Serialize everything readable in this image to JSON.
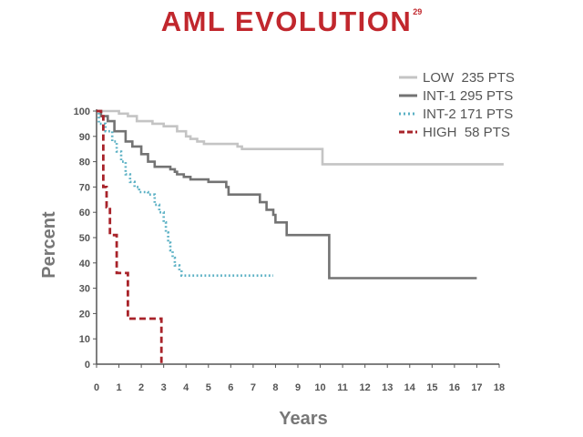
{
  "title": "AML EVOLUTION",
  "title_superscript": "29",
  "chart_data": {
    "type": "line",
    "subtype": "kaplan-meier step",
    "title": "AML EVOLUTION",
    "xlabel": "Years",
    "ylabel": "Percent",
    "xlim": [
      0,
      18
    ],
    "ylim": [
      0,
      100
    ],
    "x_ticks": [
      0,
      1,
      2,
      3,
      4,
      5,
      6,
      7,
      8,
      9,
      10,
      11,
      12,
      13,
      14,
      15,
      16,
      17,
      18
    ],
    "y_ticks": [
      0,
      10,
      20,
      30,
      40,
      50,
      60,
      70,
      80,
      90,
      100
    ],
    "grid": false,
    "legend_position": "top-right",
    "series": [
      {
        "name": "LOW  235 PTS",
        "color": "#c4c4c4",
        "style": "solid",
        "points": [
          [
            0,
            100
          ],
          [
            0.7,
            100
          ],
          [
            1,
            99
          ],
          [
            1.4,
            98
          ],
          [
            1.8,
            96
          ],
          [
            2.5,
            95
          ],
          [
            3,
            94
          ],
          [
            3.6,
            92
          ],
          [
            4,
            90
          ],
          [
            4.2,
            89
          ],
          [
            4.5,
            88
          ],
          [
            4.8,
            87
          ],
          [
            6.3,
            86
          ],
          [
            6.5,
            85
          ],
          [
            10.1,
            85
          ],
          [
            10.1,
            79
          ],
          [
            18.2,
            79
          ]
        ]
      },
      {
        "name": "INT-1 295 PTS",
        "color": "#737373",
        "style": "solid",
        "points": [
          [
            0,
            100
          ],
          [
            0.2,
            98
          ],
          [
            0.5,
            96
          ],
          [
            0.8,
            92
          ],
          [
            1.3,
            88
          ],
          [
            1.6,
            86
          ],
          [
            2,
            83
          ],
          [
            2.3,
            80
          ],
          [
            2.6,
            78
          ],
          [
            3.3,
            77
          ],
          [
            3.5,
            76
          ],
          [
            3.6,
            75
          ],
          [
            3.9,
            74
          ],
          [
            4.2,
            73
          ],
          [
            5,
            72
          ],
          [
            5.8,
            70
          ],
          [
            5.9,
            67
          ],
          [
            7.2,
            67
          ],
          [
            7.3,
            64
          ],
          [
            7.6,
            61
          ],
          [
            7.9,
            59
          ],
          [
            8,
            56
          ],
          [
            8.5,
            51
          ],
          [
            10.4,
            51
          ],
          [
            10.4,
            34
          ],
          [
            17,
            34
          ]
        ]
      },
      {
        "name": "INT-2 171 PTS",
        "color": "#5ab0c4",
        "style": "dotted",
        "points": [
          [
            0,
            100
          ],
          [
            0.1,
            95
          ],
          [
            0.4,
            92
          ],
          [
            0.7,
            88
          ],
          [
            0.9,
            84
          ],
          [
            1.1,
            80
          ],
          [
            1.3,
            75
          ],
          [
            1.5,
            72
          ],
          [
            1.7,
            70
          ],
          [
            1.9,
            68
          ],
          [
            2.3,
            67
          ],
          [
            2.6,
            63
          ],
          [
            2.8,
            60
          ],
          [
            3,
            56
          ],
          [
            3.1,
            52
          ],
          [
            3.2,
            48
          ],
          [
            3.3,
            45
          ],
          [
            3.4,
            42
          ],
          [
            3.5,
            39
          ],
          [
            3.7,
            37
          ],
          [
            3.8,
            35
          ],
          [
            7.9,
            35
          ]
        ]
      },
      {
        "name": "HIGH  58 PTS",
        "color": "#a8232a",
        "style": "dashed",
        "points": [
          [
            0,
            100
          ],
          [
            0.2,
            98
          ],
          [
            0.3,
            70
          ],
          [
            0.45,
            62
          ],
          [
            0.6,
            51
          ],
          [
            0.9,
            50
          ],
          [
            0.9,
            36
          ],
          [
            1.4,
            36
          ],
          [
            1.4,
            18
          ],
          [
            2.9,
            18
          ],
          [
            2.9,
            0
          ]
        ]
      }
    ]
  }
}
